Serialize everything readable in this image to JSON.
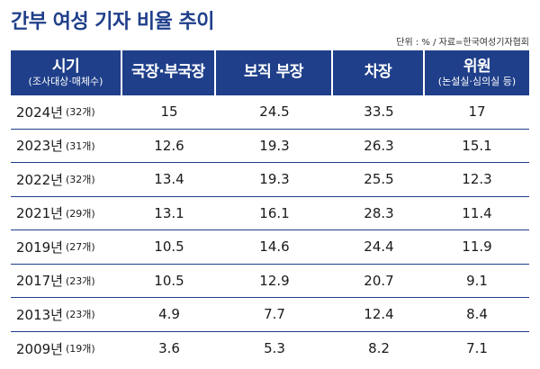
{
  "title": "간부 여성 기자 비율 추이",
  "unit_note": "단위 : % / 자료=한국여성기자협회",
  "chart_data": {
    "type": "table",
    "headers": [
      {
        "main": "시기",
        "sub": "(조사대상·매체수)"
      },
      {
        "main": "국장·부국장",
        "sub": ""
      },
      {
        "main": "보직 부장",
        "sub": ""
      },
      {
        "main": "차장",
        "sub": ""
      },
      {
        "main": "위원",
        "sub": "(논설실·심의실 등)"
      }
    ],
    "rows": [
      {
        "year": "2024년",
        "count": "(32개)",
        "values": [
          "15",
          "24.5",
          "33.5",
          "17"
        ]
      },
      {
        "year": "2023년",
        "count": "(31개)",
        "values": [
          "12.6",
          "19.3",
          "26.3",
          "15.1"
        ]
      },
      {
        "year": "2022년",
        "count": "(32개)",
        "values": [
          "13.4",
          "19.3",
          "25.5",
          "12.3"
        ]
      },
      {
        "year": "2021년",
        "count": "(29개)",
        "values": [
          "13.1",
          "16.1",
          "28.3",
          "11.4"
        ]
      },
      {
        "year": "2019년",
        "count": "(27개)",
        "values": [
          "10.5",
          "14.6",
          "24.4",
          "11.9"
        ]
      },
      {
        "year": "2017년",
        "count": "(23개)",
        "values": [
          "10.5",
          "12.9",
          "20.7",
          "9.1"
        ]
      },
      {
        "year": "2013년",
        "count": "(23개)",
        "values": [
          "4.9",
          "7.7",
          "12.4",
          "8.4"
        ]
      },
      {
        "year": "2009년",
        "count": "(19개)",
        "values": [
          "3.6",
          "5.3",
          "8.2",
          "7.1"
        ]
      }
    ]
  },
  "colors": {
    "header_bg": "#1f3f8a",
    "title": "#1f3f8a",
    "row_line": "#1f3f8a"
  }
}
